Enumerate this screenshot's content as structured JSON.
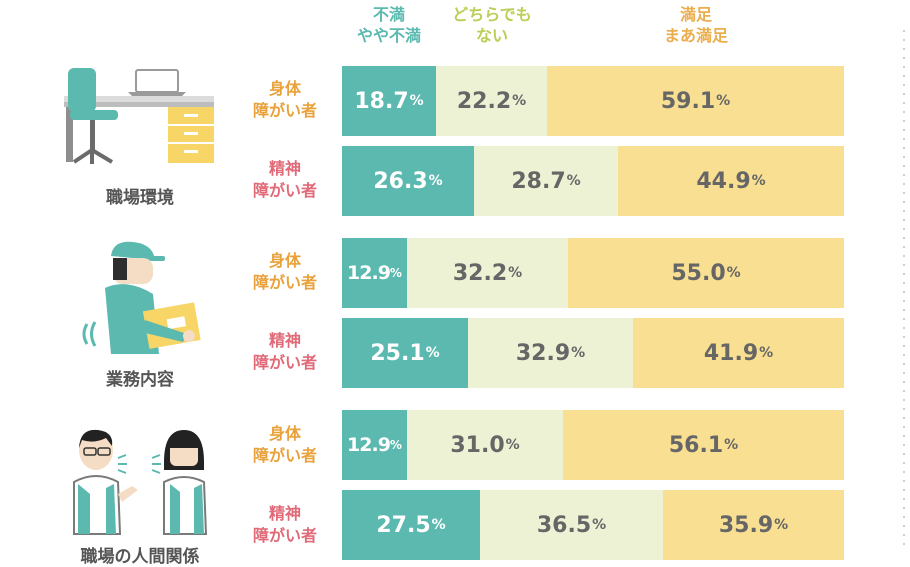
{
  "chart_data": {
    "type": "bar",
    "orientation": "horizontal",
    "stacked": true,
    "normalized": true,
    "series_legend": [
      {
        "lines": [
          "不満",
          "やや不満"
        ],
        "color": "#5bb9b0"
      },
      {
        "lines": [
          "どちらでも",
          "ない"
        ],
        "color": "#b9cf55"
      },
      {
        "lines": [
          "満足",
          "まあ満足"
        ],
        "color": "#ebae4f"
      }
    ],
    "percent_sign": "%",
    "groups": [
      {
        "label": "職場環境",
        "illustration": "office-desk-chair",
        "rows": [
          {
            "label": [
              "身体",
              "障がい者"
            ],
            "kind": "physical",
            "values": [
              18.7,
              22.2,
              59.1
            ]
          },
          {
            "label": [
              "精神",
              "障がい者"
            ],
            "kind": "mental",
            "values": [
              26.3,
              28.7,
              44.9
            ]
          }
        ]
      },
      {
        "label": "業務内容",
        "illustration": "worker-carrying-box",
        "rows": [
          {
            "label": [
              "身体",
              "障がい者"
            ],
            "kind": "physical",
            "values": [
              12.9,
              32.2,
              55.0
            ]
          },
          {
            "label": [
              "精神",
              "障がい者"
            ],
            "kind": "mental",
            "values": [
              25.1,
              32.9,
              41.9
            ]
          }
        ]
      },
      {
        "label": "職場の人間関係",
        "illustration": "two-coworkers-talking",
        "rows": [
          {
            "label": [
              "身体",
              "障がい者"
            ],
            "kind": "physical",
            "values": [
              12.9,
              31.0,
              56.1
            ]
          },
          {
            "label": [
              "精神",
              "障がい者"
            ],
            "kind": "mental",
            "values": [
              27.5,
              36.5,
              35.9
            ]
          }
        ]
      }
    ]
  },
  "colors": {
    "dissatisfied": "#5bb9b0",
    "neutral_fill": "#eef2d5",
    "neutral_text": "#b9cf55",
    "satisfied_fill": "#f8df92",
    "satisfied_text": "#ebae4f",
    "physical_label": "#e9a23b",
    "mental_label": "#e06a78",
    "value_text": "#666666"
  }
}
